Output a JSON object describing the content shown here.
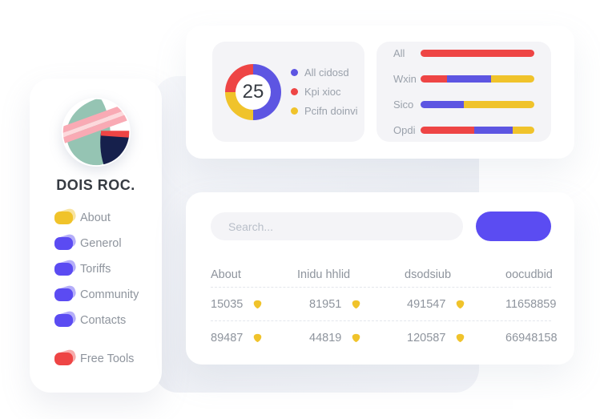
{
  "colors": {
    "red": "#ee4545",
    "yellow": "#f0c32b",
    "blue": "#5d55e2",
    "indigo": "#5b4cf2",
    "navy": "#16204c",
    "teal": "#95c4b3",
    "pink": "#f9aab4",
    "pink_light": "#fdd9dc",
    "panel_gray": "#f4f4f7",
    "text_dark": "#363b42",
    "text_gray": "#8e949d",
    "text_light": "#9aa1ab",
    "placeholder": "#b9bfc9"
  },
  "sidebar": {
    "brand": "DOIS ROC.",
    "items": [
      {
        "label": "About",
        "color": "yellow",
        "separated": false
      },
      {
        "label": "Generol",
        "color": "indigo",
        "separated": false
      },
      {
        "label": "Toriffs",
        "color": "indigo",
        "separated": false
      },
      {
        "label": "Community",
        "color": "indigo",
        "separated": false
      },
      {
        "label": "Contacts",
        "color": "indigo",
        "separated": false
      },
      {
        "label": "Free Tools",
        "color": "red",
        "separated": true
      }
    ]
  },
  "chart_data": [
    {
      "type": "pie",
      "style": "donut",
      "center_value": "25",
      "segments": [
        {
          "color": "blue",
          "pct": 50
        },
        {
          "color": "yellow",
          "pct": 25
        },
        {
          "color": "red",
          "pct": 25
        }
      ],
      "legend": [
        {
          "label": "All cidosd",
          "color": "blue"
        },
        {
          "label": "Kpi xioc",
          "color": "red"
        },
        {
          "label": "Pcifn doinvi",
          "color": "yellow"
        }
      ],
      "legend_position": "right"
    },
    {
      "type": "bar",
      "orientation": "horizontal",
      "stacked": true,
      "categories": [
        "All",
        "Wxin",
        "Sico",
        "Opdi"
      ],
      "rows": [
        {
          "label": "All",
          "segments": [
            {
              "color": "red",
              "pct": 100
            }
          ]
        },
        {
          "label": "Wxin",
          "segments": [
            {
              "color": "red",
              "pct": 23
            },
            {
              "color": "blue",
              "pct": 39
            },
            {
              "color": "yellow",
              "pct": 38
            }
          ]
        },
        {
          "label": "Sico",
          "segments": [
            {
              "color": "blue",
              "pct": 38
            },
            {
              "color": "yellow",
              "pct": 62
            }
          ]
        },
        {
          "label": "Opdi",
          "segments": [
            {
              "color": "red",
              "pct": 47
            },
            {
              "color": "blue",
              "pct": 34
            },
            {
              "color": "yellow",
              "pct": 19
            }
          ]
        }
      ],
      "xlim_pct": [
        0,
        100
      ]
    }
  ],
  "table_card": {
    "search_placeholder": "Search...",
    "headers": [
      "About",
      "Inidu hhlid",
      "dsodsiub",
      "oocudbid"
    ],
    "rows": [
      [
        "15035",
        "81951",
        "491547",
        "11658859"
      ],
      [
        "89487",
        "44819",
        "120587",
        "66948158"
      ]
    ],
    "badge_color": "yellow"
  }
}
